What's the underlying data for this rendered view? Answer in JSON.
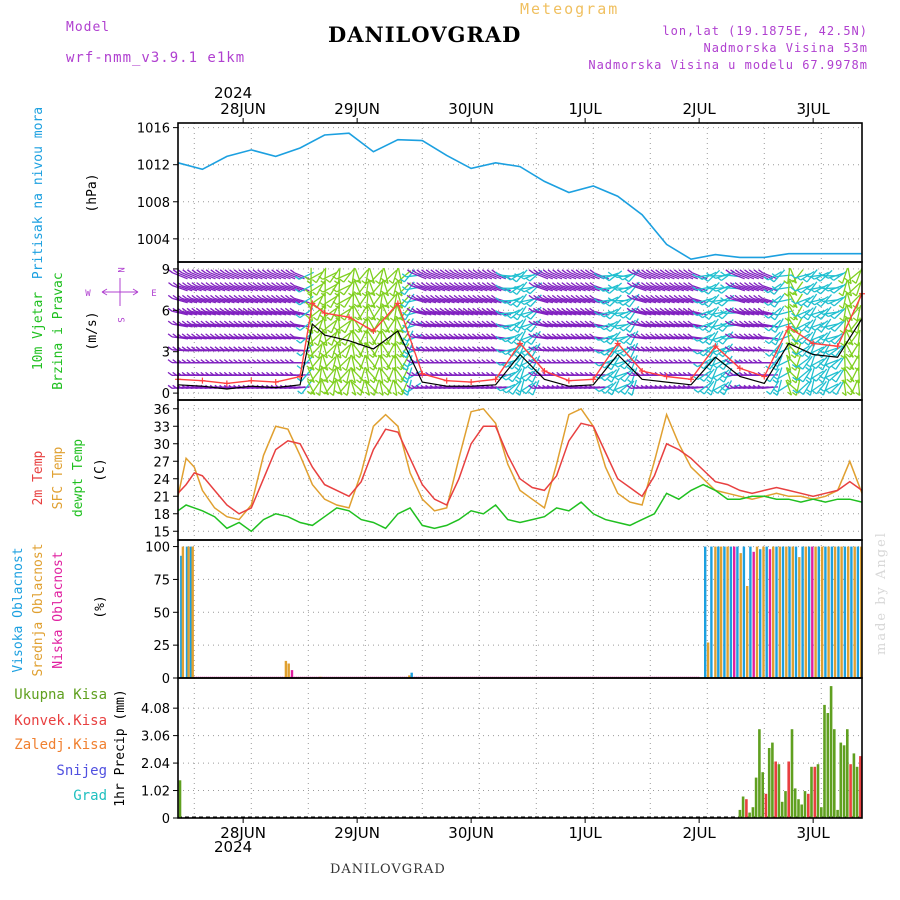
{
  "header": {
    "model_label": "Model",
    "model_name": "wrf-nmm_v3.9.1 e1km",
    "station": "DANILOVGRAD",
    "meteogram_label": "Meteogram",
    "lonlat": "lon,lat (19.1875E, 42.5N)",
    "elevation": "Nadmorska Visina 53m",
    "model_elevation": "Nadmorska Visina u modelu 67.9978m"
  },
  "top_year": "2024",
  "bottom_year": "2024",
  "footer_station": "DANILOVGRAD",
  "credit": "made by Angel",
  "colors": {
    "pressure": "#1ca0e0",
    "temp2m": "#e84040",
    "sfc_temp": "#e0a030",
    "dewpt": "#20c020",
    "cloud_high": "#1ca0e0",
    "cloud_mid": "#e0a030",
    "cloud_low": "#e020a0",
    "precip_total": "#60a020",
    "precip_conv": "#e84040",
    "wind_speed": "#000000",
    "wind_gust": "#ff4040",
    "wind_calm": "#8020c0",
    "wind_mod": "#20c0d0",
    "wind_strong": "#80d020"
  },
  "chart_data": [
    {
      "type": "line",
      "panel": "pressure",
      "ylabel_lines": [
        "Pritisak na nivou mora",
        "(hPa)"
      ],
      "ylim": [
        1001.5,
        1016.5
      ],
      "yticks": [
        "1004",
        "1008",
        "1012",
        "1016"
      ],
      "x_hours": [
        0,
        6,
        12,
        18,
        24,
        30,
        36,
        42,
        48,
        54,
        60,
        66,
        72,
        78,
        84,
        90,
        96,
        102,
        108,
        114,
        120,
        126,
        132,
        138,
        144,
        150,
        156,
        162,
        168
      ],
      "values": [
        1012.2,
        1011.5,
        1012.9,
        1013.6,
        1012.9,
        1013.8,
        1015.2,
        1015.4,
        1013.4,
        1014.7,
        1014.6,
        1013.0,
        1011.6,
        1012.2,
        1011.8,
        1010.2,
        1009.0,
        1009.7,
        1008.6,
        1006.6,
        1003.4,
        1001.8,
        1002.3,
        1002.0,
        1002.0,
        1002.4,
        1002.4,
        1002.4,
        1002.4
      ],
      "grid": true
    },
    {
      "type": "line",
      "panel": "wind",
      "ylabel_lines": [
        "10m Vjetar",
        "Brzina i Pravac",
        "(m/s)"
      ],
      "compass": [
        "N",
        "E",
        "S",
        "W"
      ],
      "ylim": [
        -0.5,
        9.5
      ],
      "yticks": [
        "0",
        "3",
        "6",
        "9"
      ],
      "x_hours": [
        0,
        6,
        12,
        18,
        24,
        30,
        33,
        36,
        42,
        48,
        54,
        60,
        66,
        72,
        78,
        84,
        90,
        96,
        102,
        108,
        114,
        120,
        126,
        132,
        138,
        144,
        150,
        156,
        162,
        168
      ],
      "series": [
        {
          "name": "speed",
          "values": [
            0.6,
            0.5,
            0.3,
            0.5,
            0.4,
            0.6,
            5.0,
            4.2,
            3.8,
            3.2,
            4.5,
            0.8,
            0.5,
            0.5,
            0.6,
            2.8,
            1.0,
            0.5,
            0.6,
            2.8,
            1.0,
            0.8,
            0.6,
            2.6,
            1.2,
            0.7,
            3.6,
            2.8,
            2.6,
            5.4
          ]
        },
        {
          "name": "gust",
          "values": [
            1.0,
            0.9,
            0.7,
            0.9,
            0.8,
            1.2,
            6.5,
            5.8,
            5.5,
            4.5,
            6.5,
            1.4,
            0.9,
            0.8,
            1.0,
            3.6,
            1.6,
            0.9,
            1.0,
            3.6,
            1.6,
            1.2,
            1.0,
            3.4,
            1.8,
            1.2,
            4.8,
            3.6,
            3.4,
            7.2
          ]
        }
      ],
      "grid": true
    },
    {
      "type": "line",
      "panel": "temperature",
      "ylabel_lines": [
        "2m Temp",
        "SFC Temp",
        "dewpt Temp",
        "(C)"
      ],
      "ylim": [
        13.5,
        37.5
      ],
      "yticks": [
        "15",
        "18",
        "21",
        "24",
        "27",
        "30",
        "33",
        "36"
      ],
      "x_hours": [
        0,
        2,
        4,
        6,
        9,
        12,
        15,
        18,
        21,
        24,
        27,
        30,
        33,
        36,
        39,
        42,
        45,
        48,
        51,
        54,
        57,
        60,
        63,
        66,
        69,
        72,
        75,
        78,
        81,
        84,
        87,
        90,
        93,
        96,
        99,
        102,
        105,
        108,
        111,
        114,
        117,
        120,
        123,
        126,
        129,
        132,
        135,
        138,
        141,
        144,
        147,
        150,
        153,
        156,
        159,
        162,
        165,
        168
      ],
      "series": [
        {
          "name": "2m Temp",
          "values": [
            21.5,
            23.0,
            25.0,
            24.5,
            22.0,
            19.5,
            18.0,
            19.0,
            24.0,
            29.0,
            30.5,
            30.0,
            26.0,
            23.0,
            22.0,
            21.0,
            23.5,
            29.0,
            32.5,
            32.0,
            27.5,
            23.0,
            20.5,
            19.5,
            24.0,
            30.0,
            33.0,
            33.0,
            28.0,
            24.0,
            22.5,
            22.0,
            24.5,
            30.5,
            33.5,
            33.0,
            28.5,
            24.0,
            22.5,
            21.0,
            24.5,
            30.0,
            29.0,
            27.5,
            25.5,
            23.5,
            23.0,
            22.0,
            21.5,
            22.0,
            22.5,
            22.0,
            21.5,
            21.0,
            21.5,
            22.0,
            23.5,
            22.0
          ]
        },
        {
          "name": "SFC Temp",
          "values": [
            21.0,
            27.5,
            26.0,
            22.0,
            19.0,
            17.5,
            17.0,
            19.5,
            28.0,
            33.0,
            32.5,
            28.0,
            23.0,
            20.5,
            19.5,
            19.0,
            25.0,
            33.0,
            35.0,
            33.0,
            25.0,
            20.5,
            18.5,
            19.0,
            27.5,
            35.5,
            36.0,
            33.5,
            26.5,
            22.0,
            20.5,
            19.0,
            26.5,
            35.0,
            36.0,
            33.0,
            26.0,
            21.5,
            20.0,
            19.5,
            27.0,
            35.0,
            30.0,
            26.0,
            24.0,
            22.0,
            21.5,
            21.0,
            20.5,
            21.0,
            21.5,
            21.0,
            21.0,
            20.5,
            21.0,
            22.0,
            27.0,
            21.5
          ]
        },
        {
          "name": "dewpt Temp",
          "values": [
            18.5,
            19.5,
            19.0,
            18.5,
            17.5,
            15.5,
            16.5,
            15.0,
            17.0,
            18.0,
            17.5,
            16.5,
            16.0,
            17.5,
            19.0,
            18.5,
            17.0,
            16.5,
            15.5,
            18.0,
            19.0,
            16.0,
            15.5,
            16.0,
            17.0,
            18.5,
            18.0,
            19.5,
            17.0,
            16.5,
            17.0,
            17.5,
            19.0,
            18.5,
            20.0,
            18.0,
            17.0,
            16.5,
            16.0,
            17.0,
            18.0,
            21.5,
            20.5,
            22.0,
            23.0,
            22.0,
            20.5,
            20.5,
            21.0,
            21.0,
            20.5,
            20.5,
            20.0,
            20.5,
            20.0,
            20.5,
            20.5,
            20.0
          ]
        }
      ],
      "grid": true
    },
    {
      "type": "bar",
      "panel": "cloud",
      "ylabel_lines": [
        "Visoka Oblacnost",
        "Srednja Oblacnost",
        "Niska Oblacnost",
        "(%)"
      ],
      "ylim": [
        0,
        105
      ],
      "yticks": [
        "0",
        "25",
        "50",
        "75",
        "100"
      ],
      "bars": [
        {
          "h": 0.8,
          "series": "high",
          "value": 93
        },
        {
          "h": 1.2,
          "series": "mid",
          "value": 100
        },
        {
          "h": 2.2,
          "series": "high",
          "value": 100
        },
        {
          "h": 2.6,
          "series": "mid",
          "value": 100
        },
        {
          "h": 3.2,
          "series": "high",
          "value": 100
        },
        {
          "h": 3.6,
          "series": "mid",
          "value": 100
        },
        {
          "h": 26.5,
          "series": "mid",
          "value": 13
        },
        {
          "h": 27.2,
          "series": "mid",
          "value": 11
        },
        {
          "h": 28.0,
          "series": "low",
          "value": 6
        },
        {
          "h": 35.0,
          "series": "mid",
          "value": 1
        },
        {
          "h": 56.8,
          "series": "mid",
          "value": 2
        },
        {
          "h": 57.4,
          "series": "high",
          "value": 4
        },
        {
          "h": 129.5,
          "series": "high",
          "value": 100
        },
        {
          "h": 130.2,
          "series": "mid",
          "value": 27
        },
        {
          "h": 131.0,
          "series": "high",
          "value": 100
        },
        {
          "h": 132.0,
          "series": "mid",
          "value": 100
        },
        {
          "h": 132.7,
          "series": "high",
          "value": 100
        },
        {
          "h": 133.4,
          "series": "mid",
          "value": 100
        },
        {
          "h": 134.2,
          "series": "high",
          "value": 100
        },
        {
          "h": 135.0,
          "series": "mid",
          "value": 100
        },
        {
          "h": 135.8,
          "series": "high",
          "value": 100
        },
        {
          "h": 136.6,
          "series": "low",
          "value": 100
        },
        {
          "h": 137.4,
          "series": "high",
          "value": 100
        },
        {
          "h": 138.2,
          "series": "mid",
          "value": 95
        },
        {
          "h": 139.0,
          "series": "high",
          "value": 100
        },
        {
          "h": 139.8,
          "series": "mid",
          "value": 70
        },
        {
          "h": 140.6,
          "series": "high",
          "value": 100
        },
        {
          "h": 141.4,
          "series": "low",
          "value": 96
        },
        {
          "h": 142.2,
          "series": "mid",
          "value": 100
        },
        {
          "h": 143.0,
          "series": "high",
          "value": 98
        },
        {
          "h": 143.8,
          "series": "mid",
          "value": 100
        },
        {
          "h": 144.6,
          "series": "high",
          "value": 100
        },
        {
          "h": 145.4,
          "series": "low",
          "value": 98
        },
        {
          "h": 146.2,
          "series": "mid",
          "value": 100
        },
        {
          "h": 147.0,
          "series": "high",
          "value": 100
        },
        {
          "h": 147.8,
          "series": "mid",
          "value": 100
        },
        {
          "h": 148.6,
          "series": "high",
          "value": 100
        },
        {
          "h": 149.4,
          "series": "mid",
          "value": 100
        },
        {
          "h": 150.2,
          "series": "high",
          "value": 100
        },
        {
          "h": 151.0,
          "series": "mid",
          "value": 100
        },
        {
          "h": 151.8,
          "series": "high",
          "value": 100
        },
        {
          "h": 152.6,
          "series": "mid",
          "value": 92
        },
        {
          "h": 153.4,
          "series": "high",
          "value": 100
        },
        {
          "h": 154.2,
          "series": "mid",
          "value": 100
        },
        {
          "h": 155.0,
          "series": "high",
          "value": 100
        },
        {
          "h": 155.8,
          "series": "low",
          "value": 100
        },
        {
          "h": 156.6,
          "series": "mid",
          "value": 100
        },
        {
          "h": 157.4,
          "series": "high",
          "value": 100
        },
        {
          "h": 158.2,
          "series": "mid",
          "value": 100
        },
        {
          "h": 159.0,
          "series": "high",
          "value": 100
        },
        {
          "h": 159.8,
          "series": "mid",
          "value": 100
        },
        {
          "h": 160.6,
          "series": "high",
          "value": 100
        },
        {
          "h": 161.4,
          "series": "mid",
          "value": 100
        },
        {
          "h": 162.2,
          "series": "high",
          "value": 100
        },
        {
          "h": 163.0,
          "series": "mid",
          "value": 100
        },
        {
          "h": 163.8,
          "series": "high",
          "value": 100
        },
        {
          "h": 164.6,
          "series": "mid",
          "value": 100
        },
        {
          "h": 165.4,
          "series": "high",
          "value": 100
        },
        {
          "h": 166.2,
          "series": "mid",
          "value": 100
        },
        {
          "h": 167.0,
          "series": "high",
          "value": 100
        },
        {
          "h": 167.8,
          "series": "mid",
          "value": 100
        }
      ],
      "grid": true
    },
    {
      "type": "bar",
      "panel": "precip",
      "legend": [
        "Ukupna Kisa",
        "Konvek.Kisa",
        "Zaledj.Kisa",
        "Snijeg",
        "Grad"
      ],
      "ylabel": "1hr Precip (mm)",
      "ylim": [
        0,
        5.2
      ],
      "yticks": [
        "0",
        "1.02",
        "2.04",
        "3.06",
        "4.08"
      ],
      "bars": [
        {
          "h": 0.5,
          "series": "total",
          "value": 1.4
        },
        {
          "h": 138.0,
          "series": "total",
          "value": 0.3
        },
        {
          "h": 138.8,
          "series": "total",
          "value": 0.8
        },
        {
          "h": 139.6,
          "series": "conv",
          "value": 0.7
        },
        {
          "h": 140.4,
          "series": "total",
          "value": 0.2
        },
        {
          "h": 141.2,
          "series": "total",
          "value": 0.4
        },
        {
          "h": 142.0,
          "series": "total",
          "value": 1.5
        },
        {
          "h": 142.8,
          "series": "total",
          "value": 3.3
        },
        {
          "h": 143.6,
          "series": "total",
          "value": 1.7
        },
        {
          "h": 144.4,
          "series": "conv",
          "value": 0.9
        },
        {
          "h": 145.2,
          "series": "total",
          "value": 2.6
        },
        {
          "h": 146.0,
          "series": "total",
          "value": 2.8
        },
        {
          "h": 146.8,
          "series": "conv",
          "value": 2.1
        },
        {
          "h": 147.6,
          "series": "total",
          "value": 2.0
        },
        {
          "h": 148.4,
          "series": "total",
          "value": 0.6
        },
        {
          "h": 149.2,
          "series": "total",
          "value": 1.0
        },
        {
          "h": 150.0,
          "series": "conv",
          "value": 2.1
        },
        {
          "h": 150.8,
          "series": "total",
          "value": 3.3
        },
        {
          "h": 151.6,
          "series": "total",
          "value": 1.1
        },
        {
          "h": 152.4,
          "series": "total",
          "value": 0.7
        },
        {
          "h": 153.2,
          "series": "total",
          "value": 0.5
        },
        {
          "h": 154.0,
          "series": "total",
          "value": 1.0
        },
        {
          "h": 154.8,
          "series": "conv",
          "value": 0.9
        },
        {
          "h": 155.6,
          "series": "total",
          "value": 1.9
        },
        {
          "h": 156.4,
          "series": "conv",
          "value": 1.9
        },
        {
          "h": 157.2,
          "series": "total",
          "value": 2.0
        },
        {
          "h": 158.0,
          "series": "total",
          "value": 0.4
        },
        {
          "h": 158.8,
          "series": "total",
          "value": 4.2
        },
        {
          "h": 159.6,
          "series": "total",
          "value": 3.9
        },
        {
          "h": 160.4,
          "series": "total",
          "value": 4.9
        },
        {
          "h": 161.2,
          "series": "total",
          "value": 3.3
        },
        {
          "h": 162.0,
          "series": "total",
          "value": 0.3
        },
        {
          "h": 162.8,
          "series": "total",
          "value": 2.8
        },
        {
          "h": 163.6,
          "series": "total",
          "value": 2.7
        },
        {
          "h": 164.4,
          "series": "total",
          "value": 3.3
        },
        {
          "h": 165.2,
          "series": "conv",
          "value": 2.0
        },
        {
          "h": 166.0,
          "series": "total",
          "value": 2.4
        },
        {
          "h": 166.8,
          "series": "total",
          "value": 1.9
        },
        {
          "h": 167.6,
          "series": "conv",
          "value": 2.3
        }
      ],
      "grid": true
    }
  ],
  "x_axis": {
    "labels": [
      "28JUN",
      "29JUN",
      "30JUN",
      "1JUL",
      "2JUL",
      "3JUL"
    ],
    "label_hours": [
      16,
      44,
      72,
      100,
      128,
      156
    ]
  }
}
